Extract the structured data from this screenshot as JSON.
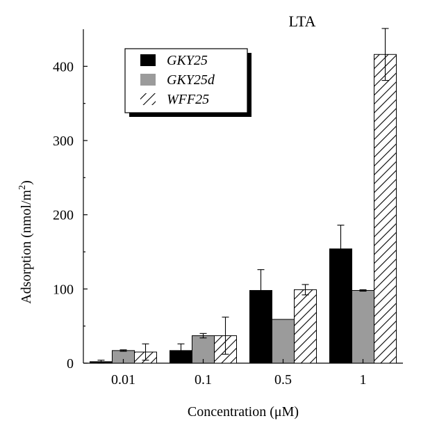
{
  "chart_data": {
    "type": "bar",
    "title": "LTA",
    "xlabel": "Concentration (μM)",
    "ylabel_main": "Adsorption (nmol/m",
    "ylabel_sup": "2",
    "ylabel_tail": ")",
    "ylim": [
      0,
      450
    ],
    "yticks": [
      0,
      100,
      200,
      300,
      400
    ],
    "categories": [
      "0.01",
      "0.1",
      "0.5",
      "1"
    ],
    "series": [
      {
        "name": "GKY25",
        "style": "solid",
        "color": "#000000",
        "values": [
          2,
          17,
          98,
          154
        ],
        "errors": [
          2,
          9,
          28,
          32
        ]
      },
      {
        "name": "GKY25d",
        "style": "solid",
        "color": "#9b9b9b",
        "values": [
          17,
          37,
          59,
          98
        ],
        "errors": [
          1,
          3,
          0,
          1
        ]
      },
      {
        "name": "WFF25",
        "style": "hatched",
        "color": "#ffffff",
        "values": [
          15,
          37,
          99,
          416
        ],
        "errors": [
          11,
          25,
          7,
          35
        ]
      }
    ],
    "legend_position": "top-left",
    "grid": false
  }
}
